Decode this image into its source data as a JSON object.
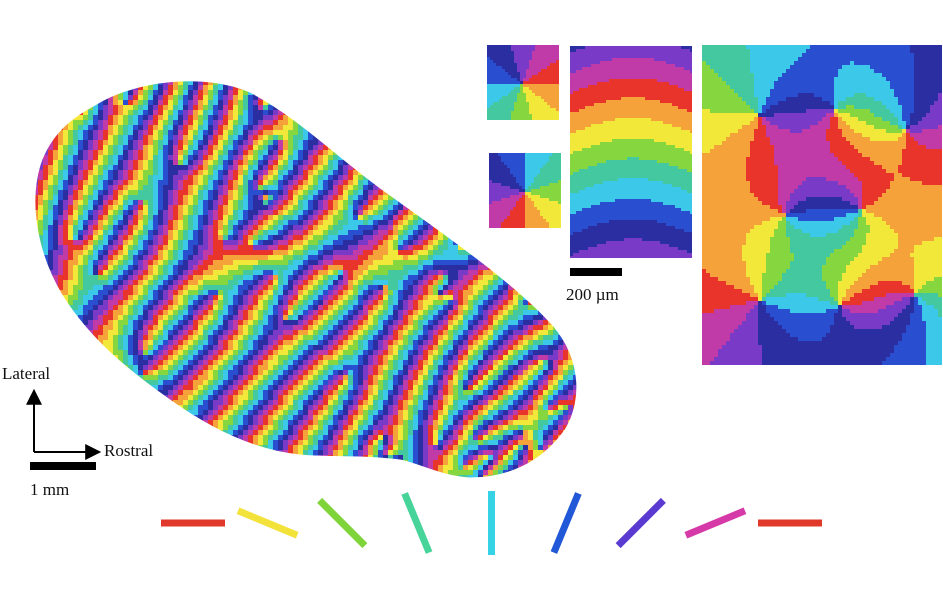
{
  "figure": {
    "axis_labels": {
      "vertical": "Lateral",
      "horizontal": "Rostral"
    },
    "scale_bars": {
      "large": "1 mm",
      "small": "200 µm"
    },
    "panels": [
      {
        "name": "full-orientation-map"
      },
      {
        "name": "pinwheel-inset-top"
      },
      {
        "name": "pinwheel-inset-bottom"
      },
      {
        "name": "linear-zone-inset"
      },
      {
        "name": "pinwheel-cluster-inset"
      }
    ],
    "orientation_key": {
      "angles_deg": [
        0,
        22.5,
        45,
        67.5,
        90,
        112.5,
        135,
        157.5,
        180
      ],
      "colors": [
        "#e0382b",
        "#f2e23a",
        "#7fd43a",
        "#46d49a",
        "#36d2e6",
        "#2058d8",
        "#5a3ad0",
        "#d63aa8",
        "#e0382b"
      ]
    },
    "palette": {
      "hues": [
        "#e8342a",
        "#f6a23a",
        "#f2e83a",
        "#86d640",
        "#44c8a0",
        "#3cc8e8",
        "#2a4ed0",
        "#2a2ea0",
        "#7a3ac8",
        "#c03aa8"
      ]
    }
  }
}
